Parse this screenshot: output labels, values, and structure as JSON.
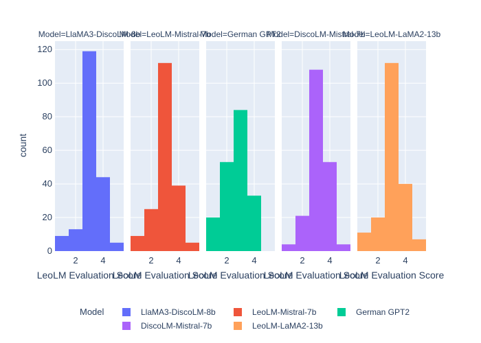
{
  "chart_data": {
    "type": "bar",
    "subtype": "faceted-histogram",
    "ylabel": "count",
    "xlabel": "LeoLM Evaluation Score",
    "ylim": [
      0,
      125
    ],
    "y_ticks": [
      0,
      20,
      40,
      60,
      80,
      100,
      120
    ],
    "xlim": [
      0.5,
      5.5
    ],
    "x_ticks": [
      2,
      4
    ],
    "bin_edges": [
      0.5,
      1.5,
      2.5,
      3.5,
      4.5,
      5.5
    ],
    "grid": true,
    "legend_title": "Model",
    "legend_position": "bottom",
    "facets": [
      {
        "title": "Model=LlaMA3-DiscoLM-8b",
        "name": "LlaMA3-DiscoLM-8b",
        "color": "#636efa",
        "values": [
          9,
          13,
          119,
          44,
          5
        ]
      },
      {
        "title": "Model=LeoLM-Mistral-7b",
        "name": "LeoLM-Mistral-7b",
        "color": "#ef553b",
        "values": [
          9,
          25,
          112,
          39,
          5
        ]
      },
      {
        "title": "Model=German GPT2",
        "name": "German GPT2",
        "color": "#00cc96",
        "values": [
          20,
          53,
          84,
          33,
          0
        ]
      },
      {
        "title": "Model=DiscoLM-Mistral-7b",
        "name": "DiscoLM-Mistral-7b",
        "color": "#ab63fa",
        "values": [
          4,
          21,
          108,
          53,
          4
        ]
      },
      {
        "title": "Model=LeoLM-LaMA2-13b",
        "name": "LeoLM-LaMA2-13b",
        "color": "#ffa15a",
        "values": [
          11,
          20,
          112,
          40,
          7
        ]
      }
    ]
  }
}
